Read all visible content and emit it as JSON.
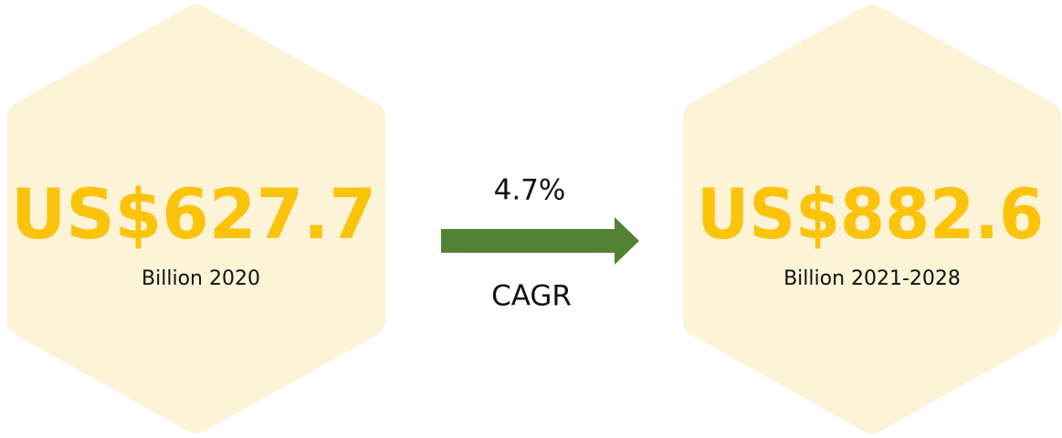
{
  "left": {
    "amount": "US$627.7",
    "caption": "Billion 2020"
  },
  "growth": {
    "rate": "4.7%",
    "label": "CAGR"
  },
  "right": {
    "amount": "US$882.6",
    "caption": "Billion 2021-2028"
  }
}
